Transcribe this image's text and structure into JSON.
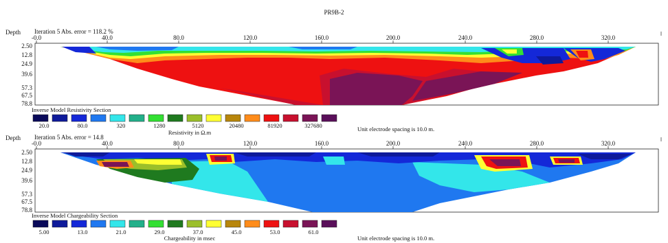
{
  "figure_title": "PR9B-2",
  "chart_data": [
    {
      "type": "heatmap",
      "depth_label": "Depth",
      "header": "Iteration 5 Abs. error = 118.2 %",
      "x_ticks": [
        "-0.0",
        "40.0",
        "80.0",
        "120.0",
        "160.0",
        "200.0",
        "240.0",
        "280.0",
        "320.0"
      ],
      "y_ticks": [
        "2.50",
        "12.8",
        "24.9",
        "39.6",
        "57.3",
        "67.5",
        "78.8"
      ],
      "section_title": "Inverse Model Resistivity Section",
      "scale_values": [
        "20.0",
        "80.0",
        "320",
        "1280",
        "5120",
        "20480",
        "81920",
        "327680"
      ],
      "unit_label": "Resistivity in Ω.m",
      "note": "Unit electrode spacing is 10.0 m."
    },
    {
      "type": "heatmap",
      "depth_label": "Depth",
      "header": "Iteration 5 Abs. error = 14.8",
      "x_ticks": [
        "-0.0",
        "40.0",
        "80.0",
        "120.0",
        "160.0",
        "200.0",
        "240.0",
        "280.0",
        "320.0"
      ],
      "y_ticks": [
        "2.50",
        "12.8",
        "24.9",
        "39.6",
        "57.3",
        "67.5",
        "78.8"
      ],
      "section_title": "Inverse Model Chargeability Section",
      "scale_values": [
        "5.00",
        "13.0",
        "21.0",
        "29.0",
        "37.0",
        "45.0",
        "53.0",
        "61.0"
      ],
      "unit_label": "Chargeability in msec",
      "note": "Unit electrode spacing is 10.0 m."
    }
  ],
  "palette": [
    "#0a0a5a",
    "#0e1a9a",
    "#1428d8",
    "#1f78f0",
    "#33e6ea",
    "#22b08a",
    "#33e033",
    "#1f7a1f",
    "#9bbf2a",
    "#ffff33",
    "#b8860b",
    "#ff8c1a",
    "#ee1111",
    "#c8102e",
    "#7a1456",
    "#5a0f5a"
  ]
}
